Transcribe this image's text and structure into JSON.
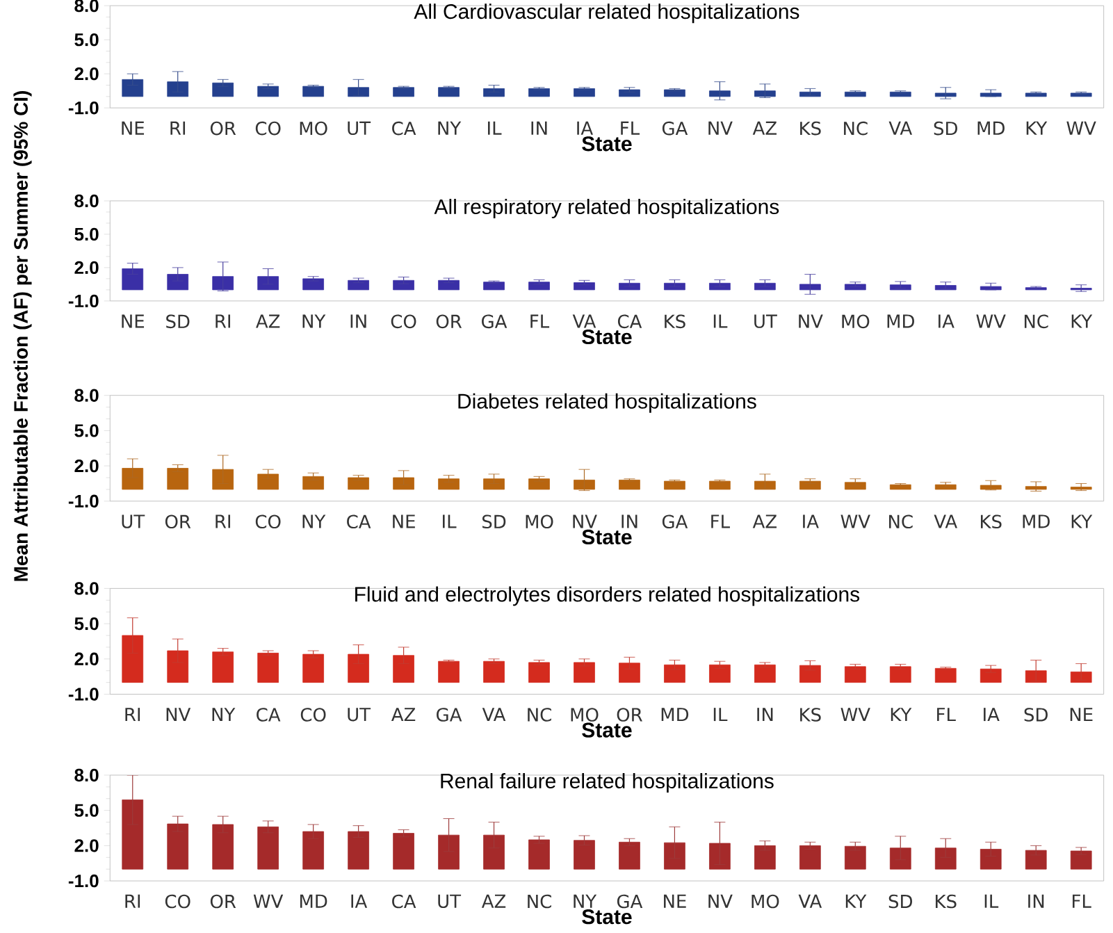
{
  "chart_data": [
    {
      "type": "bar",
      "title": "All Cardiovascular related hospitalizations",
      "xlabel": "State",
      "color": "#24408e",
      "ylim": [
        -1,
        8
      ],
      "yticks": [
        {
          "value": -1,
          "label": "-1.0"
        },
        {
          "value": 2,
          "label": "2.0"
        },
        {
          "value": 5,
          "label": "5.0"
        },
        {
          "value": 8,
          "label": "8.0"
        }
      ],
      "categories": [
        "NE",
        "RI",
        "OR",
        "CO",
        "MO",
        "UT",
        "CA",
        "NY",
        "IL",
        "IN",
        "IA",
        "FL",
        "GA",
        "NV",
        "AZ",
        "KS",
        "NC",
        "VA",
        "SD",
        "MD",
        "KY",
        "WV"
      ],
      "values": [
        1.5,
        1.3,
        1.2,
        0.9,
        0.9,
        0.8,
        0.8,
        0.8,
        0.7,
        0.7,
        0.7,
        0.6,
        0.6,
        0.5,
        0.5,
        0.4,
        0.4,
        0.4,
        0.3,
        0.3,
        0.3,
        0.3
      ],
      "errors": [
        0.5,
        0.9,
        0.3,
        0.2,
        0.1,
        0.7,
        0.1,
        0.1,
        0.3,
        0.1,
        0.1,
        0.2,
        0.1,
        0.8,
        0.6,
        0.3,
        0.1,
        0.1,
        0.5,
        0.3,
        0.1,
        0.1
      ]
    },
    {
      "type": "bar",
      "title": "All respiratory related hospitalizations",
      "xlabel": "State",
      "color": "#3a2fa6",
      "ylim": [
        -1,
        8
      ],
      "yticks": [
        {
          "value": -1,
          "label": "-1.0"
        },
        {
          "value": 2,
          "label": "2.0"
        },
        {
          "value": 5,
          "label": "5.0"
        },
        {
          "value": 8,
          "label": "8.0"
        }
      ],
      "categories": [
        "NE",
        "SD",
        "RI",
        "AZ",
        "NY",
        "IN",
        "CO",
        "OR",
        "GA",
        "FL",
        "VA",
        "CA",
        "KS",
        "IL",
        "UT",
        "NV",
        "MO",
        "MD",
        "IA",
        "WV",
        "NC",
        "KY"
      ],
      "values": [
        1.9,
        1.4,
        1.2,
        1.2,
        1.0,
        0.85,
        0.85,
        0.85,
        0.7,
        0.7,
        0.65,
        0.6,
        0.6,
        0.6,
        0.6,
        0.5,
        0.5,
        0.45,
        0.4,
        0.3,
        0.2,
        0.15
      ],
      "errors": [
        0.5,
        0.6,
        1.3,
        0.7,
        0.2,
        0.2,
        0.3,
        0.2,
        0.1,
        0.2,
        0.2,
        0.3,
        0.3,
        0.3,
        0.3,
        0.9,
        0.2,
        0.3,
        0.3,
        0.3,
        0.1,
        0.3
      ]
    },
    {
      "type": "bar",
      "title": "Diabetes related hospitalizations",
      "xlabel": "State",
      "ylabel": "Mean Attributable Fraction (AF) per Summer (95% CI)",
      "color": "#b8650f",
      "ylim": [
        -1,
        8
      ],
      "yticks": [
        {
          "value": -1,
          "label": "-1.0"
        },
        {
          "value": 2,
          "label": "2.0"
        },
        {
          "value": 5,
          "label": "5.0"
        },
        {
          "value": 8,
          "label": "8.0"
        }
      ],
      "categories": [
        "UT",
        "OR",
        "RI",
        "CO",
        "NY",
        "CA",
        "NE",
        "IL",
        "SD",
        "MO",
        "NV",
        "IN",
        "GA",
        "FL",
        "AZ",
        "IA",
        "WV",
        "NC",
        "VA",
        "KS",
        "MD",
        "KY"
      ],
      "values": [
        1.8,
        1.8,
        1.7,
        1.3,
        1.1,
        1.0,
        1.0,
        0.9,
        0.9,
        0.9,
        0.8,
        0.8,
        0.7,
        0.7,
        0.7,
        0.7,
        0.6,
        0.4,
        0.4,
        0.35,
        0.25,
        0.2
      ],
      "errors": [
        0.8,
        0.3,
        1.2,
        0.4,
        0.3,
        0.2,
        0.6,
        0.3,
        0.4,
        0.2,
        0.9,
        0.1,
        0.1,
        0.1,
        0.6,
        0.2,
        0.3,
        0.1,
        0.2,
        0.4,
        0.4,
        0.3
      ]
    },
    {
      "type": "bar",
      "title": "Fluid and electrolytes disorders related hospitalizations",
      "xlabel": "State",
      "color": "#d42b1e",
      "ylim": [
        -1,
        8
      ],
      "yticks": [
        {
          "value": -1,
          "label": "-1.0"
        },
        {
          "value": 2,
          "label": "2.0"
        },
        {
          "value": 5,
          "label": "5.0"
        },
        {
          "value": 8,
          "label": "8.0"
        }
      ],
      "categories": [
        "RI",
        "NV",
        "NY",
        "CA",
        "CO",
        "UT",
        "AZ",
        "GA",
        "VA",
        "NC",
        "MO",
        "OR",
        "MD",
        "IL",
        "IN",
        "KS",
        "WV",
        "KY",
        "FL",
        "IA",
        "SD",
        "NE"
      ],
      "values": [
        4.0,
        2.7,
        2.6,
        2.5,
        2.4,
        2.4,
        2.3,
        1.8,
        1.8,
        1.7,
        1.7,
        1.65,
        1.5,
        1.5,
        1.5,
        1.45,
        1.35,
        1.35,
        1.2,
        1.15,
        1.0,
        0.9
      ],
      "errors": [
        1.5,
        1.0,
        0.3,
        0.2,
        0.3,
        0.8,
        0.7,
        0.1,
        0.2,
        0.2,
        0.3,
        0.5,
        0.4,
        0.3,
        0.2,
        0.4,
        0.2,
        0.2,
        0.1,
        0.3,
        0.9,
        0.7
      ]
    },
    {
      "type": "bar",
      "title": "Renal failure related hospitalizations",
      "xlabel": "State",
      "color": "#a52a2a",
      "ylim": [
        -1,
        8
      ],
      "yticks": [
        {
          "value": -1,
          "label": "-1.0"
        },
        {
          "value": 2,
          "label": "2.0"
        },
        {
          "value": 5,
          "label": "5.0"
        },
        {
          "value": 8,
          "label": "8.0"
        }
      ],
      "categories": [
        "RI",
        "CO",
        "OR",
        "WV",
        "MD",
        "IA",
        "CA",
        "UT",
        "AZ",
        "NC",
        "NY",
        "GA",
        "NE",
        "NV",
        "MO",
        "VA",
        "KY",
        "SD",
        "KS",
        "IL",
        "IN",
        "FL"
      ],
      "values": [
        5.9,
        3.85,
        3.8,
        3.6,
        3.2,
        3.2,
        3.05,
        2.9,
        2.9,
        2.5,
        2.45,
        2.3,
        2.25,
        2.2,
        2.0,
        2.0,
        1.95,
        1.8,
        1.8,
        1.7,
        1.6,
        1.55
      ],
      "errors": [
        2.1,
        0.65,
        0.7,
        0.5,
        0.6,
        0.5,
        0.3,
        1.4,
        1.1,
        0.3,
        0.4,
        0.3,
        1.35,
        1.8,
        0.4,
        0.3,
        0.35,
        1.0,
        0.8,
        0.6,
        0.4,
        0.3
      ]
    }
  ]
}
